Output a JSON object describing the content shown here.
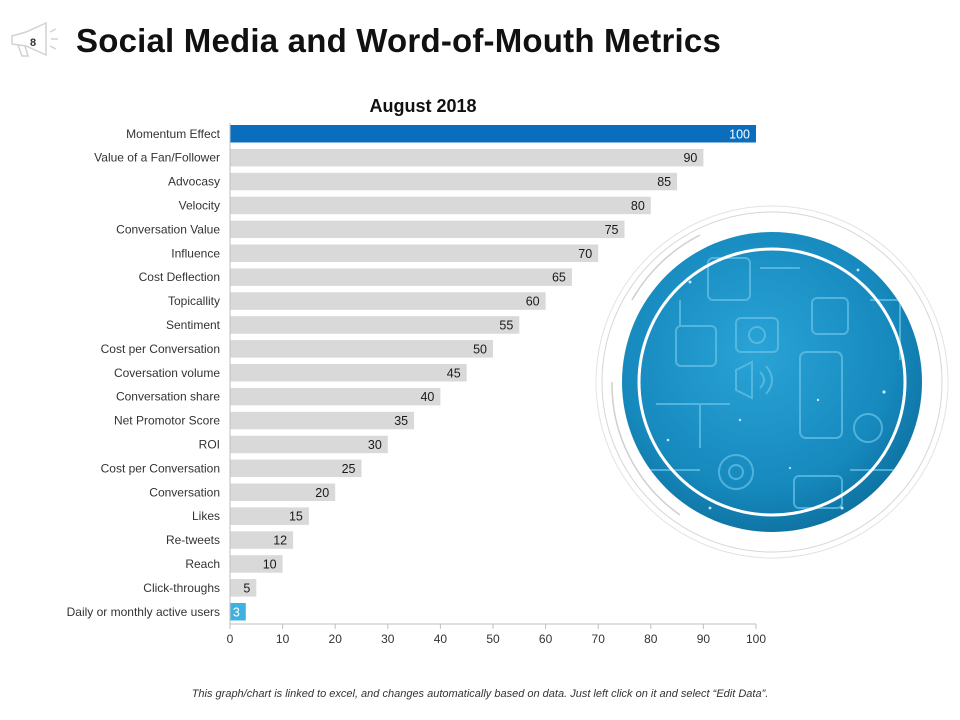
{
  "slide_number": "8",
  "title": "Social Media and Word-of-Mouth Metrics",
  "footer_note": "This graph/chart is linked to excel, and changes automatically  based on data.  Just left click on it and select “Edit Data”.",
  "decor": {
    "left_icon": "megaphone-icon",
    "image": "social-media-globe-illustration",
    "globe_color": "#1a8fc4"
  },
  "colors": {
    "highlight_top": "#0a6ebd",
    "highlight_bottom": "#3fb1e0",
    "bar": "#d9d9d9"
  },
  "chart_data": {
    "type": "bar",
    "orientation": "horizontal",
    "title": "August 2018",
    "categories": [
      "Momentum Effect",
      "Value of a Fan/Follower",
      "Advocasy",
      "Velocity",
      "Conversation Value",
      "Influence",
      "Cost Deflection",
      "Topicallity",
      "Sentiment",
      "Cost per Conversation",
      "Coversation volume",
      "Conversation share",
      "Net Promotor Score",
      "ROI",
      "Cost per Conversation",
      "Conversation",
      "Likes",
      "Re-tweets",
      "Reach",
      "Click-throughs",
      "Daily or monthly active users"
    ],
    "values": [
      100,
      90,
      85,
      80,
      75,
      70,
      65,
      60,
      55,
      50,
      45,
      40,
      35,
      30,
      25,
      20,
      15,
      12,
      10,
      5,
      3
    ],
    "xlim": [
      0,
      100
    ],
    "xticks": [
      0,
      10,
      20,
      30,
      40,
      50,
      60,
      70,
      80,
      90,
      100
    ],
    "grid": false,
    "legend": "none"
  }
}
